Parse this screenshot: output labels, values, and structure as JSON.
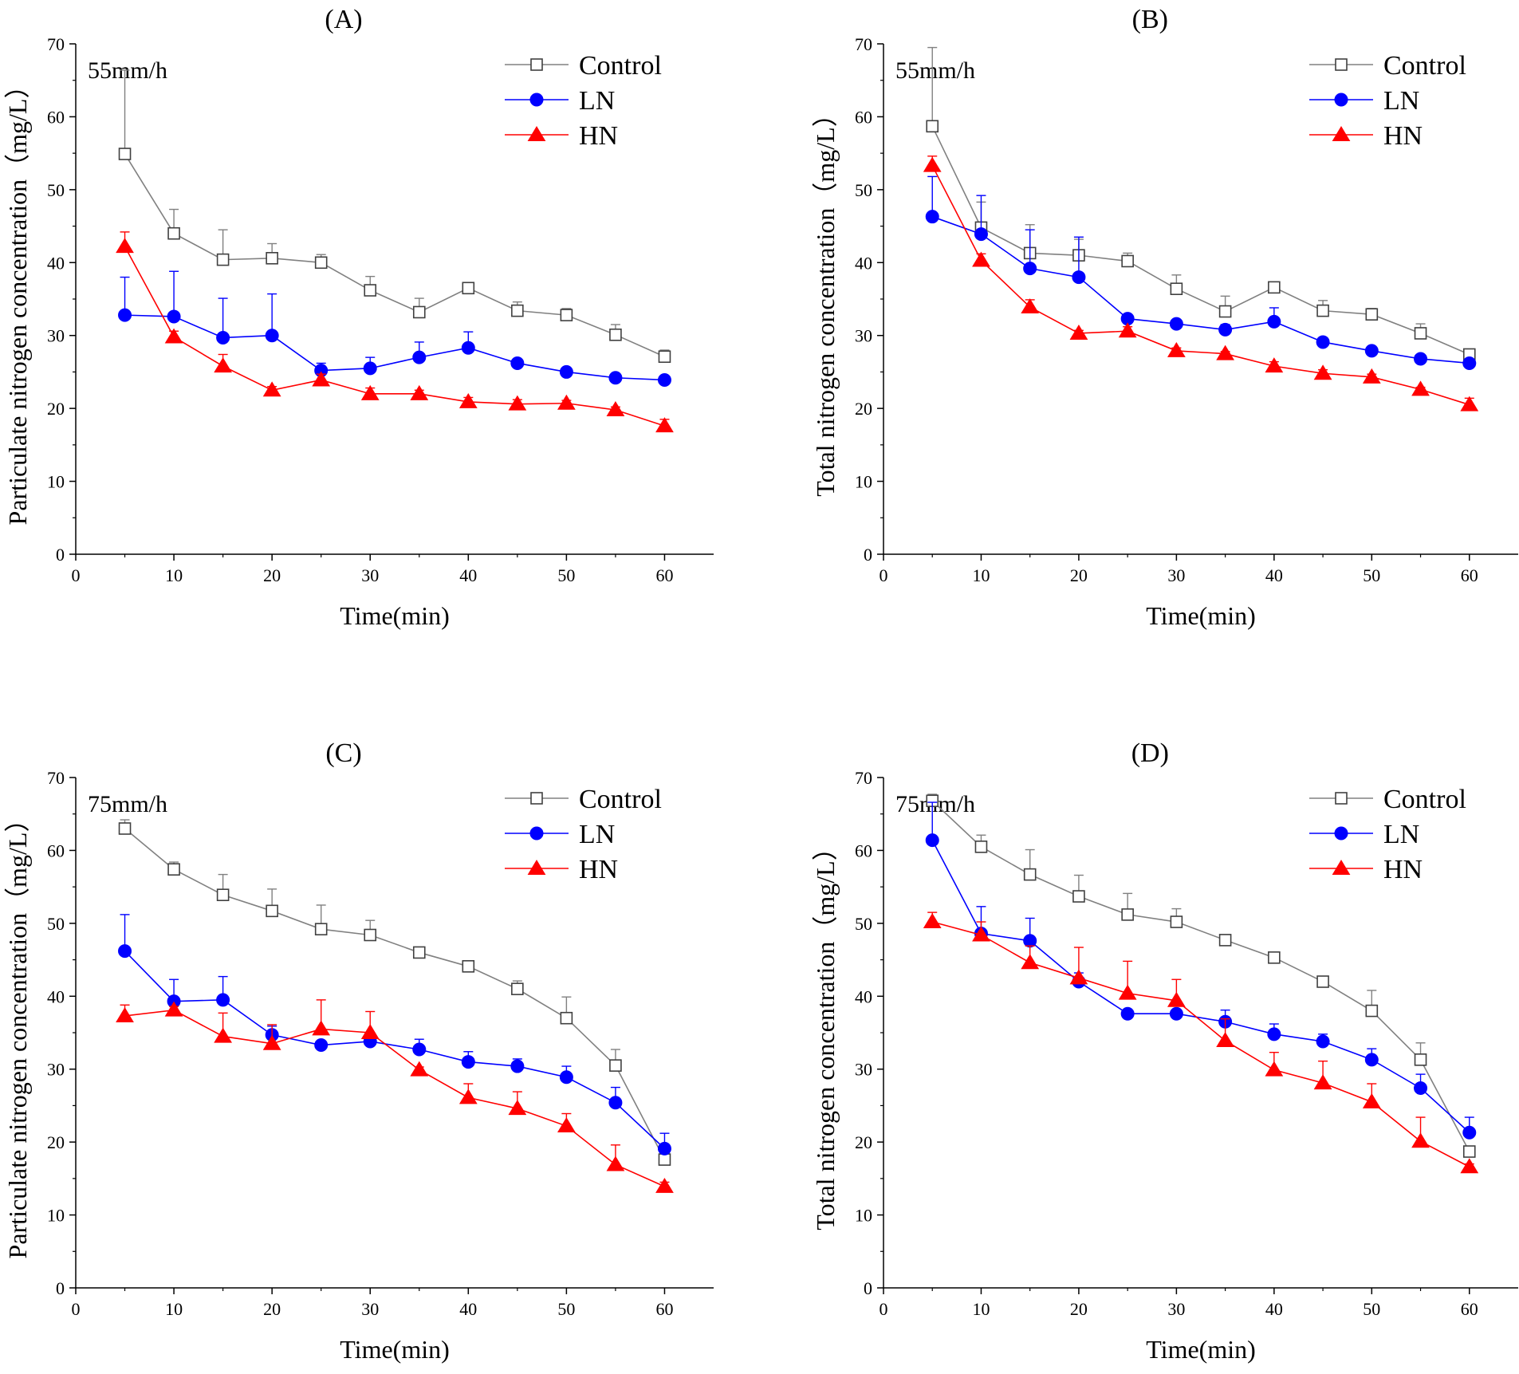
{
  "figure": {
    "series_names": [
      "Control",
      "LN",
      "HN"
    ],
    "series_colors": {
      "Control": "#808080",
      "LN": "#0000ff",
      "HN": "#ff0000"
    },
    "marker_shapes": {
      "Control": "open-square",
      "LN": "filled-circle",
      "HN": "filled-triangle"
    }
  },
  "chart_data": [
    {
      "id": "A",
      "type": "line",
      "title": "(A)",
      "annotation": "55mm/h",
      "xlabel": "Time(min)",
      "ylabel": "Particulate nitrogen concentration（mg/L）",
      "xlim": [
        0,
        65
      ],
      "ylim": [
        0,
        70
      ],
      "xticks": [
        0,
        10,
        20,
        30,
        40,
        50,
        60
      ],
      "yticks": [
        0,
        10,
        20,
        30,
        40,
        50,
        60,
        70
      ],
      "x": [
        5,
        10,
        15,
        20,
        25,
        30,
        35,
        40,
        45,
        50,
        55,
        60
      ],
      "legend_position": "top-right",
      "series": [
        {
          "name": "Control",
          "values": [
            54.9,
            44.0,
            40.4,
            40.6,
            40.0,
            36.2,
            33.2,
            36.5,
            33.4,
            32.8,
            30.1,
            27.1
          ],
          "errors": [
            11.5,
            3.3,
            4.1,
            2.0,
            1.1,
            1.9,
            1.9,
            0.4,
            1.2,
            0.9,
            1.4,
            0.9
          ]
        },
        {
          "name": "LN",
          "values": [
            32.8,
            32.6,
            29.7,
            30.0,
            25.2,
            25.5,
            27.0,
            28.3,
            26.2,
            25.0,
            24.2,
            23.9
          ],
          "errors": [
            5.2,
            6.2,
            5.4,
            5.7,
            1.0,
            1.5,
            2.1,
            2.2,
            0.4,
            0.3,
            0.3,
            0.3
          ]
        },
        {
          "name": "HN",
          "values": [
            42.2,
            29.8,
            25.8,
            22.5,
            23.9,
            22.0,
            22.0,
            20.9,
            20.6,
            20.7,
            19.8,
            17.6
          ],
          "errors": [
            2.0,
            0.8,
            1.6,
            0.5,
            0.8,
            0.8,
            0.5,
            0.6,
            0.6,
            0.4,
            0.4,
            0.9
          ]
        }
      ]
    },
    {
      "id": "B",
      "type": "line",
      "title": "(B)",
      "annotation": "55mm/h",
      "xlabel": "Time(min)",
      "ylabel": "Total nitrogen concentration（mg/L）",
      "xlim": [
        0,
        65
      ],
      "ylim": [
        0,
        70
      ],
      "xticks": [
        0,
        10,
        20,
        30,
        40,
        50,
        60
      ],
      "yticks": [
        0,
        10,
        20,
        30,
        40,
        50,
        60,
        70
      ],
      "x": [
        5,
        10,
        15,
        20,
        25,
        30,
        35,
        40,
        45,
        50,
        55,
        60
      ],
      "legend_position": "top-right",
      "series": [
        {
          "name": "Control",
          "values": [
            58.7,
            44.8,
            41.3,
            41.0,
            40.2,
            36.4,
            33.3,
            36.6,
            33.4,
            32.9,
            30.3,
            27.4
          ],
          "errors": [
            10.8,
            3.5,
            3.9,
            2.2,
            1.1,
            1.9,
            2.1,
            0.5,
            1.4,
            0.8,
            1.3,
            0.7
          ]
        },
        {
          "name": "LN",
          "values": [
            46.3,
            43.9,
            39.2,
            38.0,
            32.3,
            31.6,
            30.8,
            31.9,
            29.1,
            27.9,
            26.8,
            26.2
          ],
          "errors": [
            5.5,
            5.3,
            5.3,
            5.5,
            0.4,
            0.3,
            0.7,
            1.9,
            0.3,
            0.3,
            0.3,
            0.3
          ]
        },
        {
          "name": "HN",
          "values": [
            53.3,
            40.3,
            33.9,
            30.3,
            30.6,
            27.9,
            27.5,
            25.8,
            24.8,
            24.3,
            22.6,
            20.5
          ],
          "errors": [
            1.3,
            0.9,
            1.0,
            0.4,
            0.6,
            0.4,
            0.3,
            0.6,
            0.5,
            0.4,
            0.3,
            0.9
          ]
        }
      ]
    },
    {
      "id": "C",
      "type": "line",
      "title": "(C)",
      "annotation": "75mm/h",
      "xlabel": "Time(min)",
      "ylabel": "Particulate nitrogen concentration（mg/L）",
      "xlim": [
        0,
        65
      ],
      "ylim": [
        0,
        70
      ],
      "xticks": [
        0,
        10,
        20,
        30,
        40,
        50,
        60
      ],
      "yticks": [
        0,
        10,
        20,
        30,
        40,
        50,
        60,
        70
      ],
      "x": [
        5,
        10,
        15,
        20,
        25,
        30,
        35,
        40,
        45,
        50,
        55,
        60
      ],
      "legend_position": "top-right",
      "series": [
        {
          "name": "Control",
          "values": [
            63.0,
            57.4,
            53.9,
            51.7,
            49.2,
            48.4,
            46.0,
            44.1,
            41.0,
            37.0,
            30.5,
            17.6
          ],
          "errors": [
            1.2,
            1.0,
            2.8,
            3.0,
            3.3,
            2.0,
            0.6,
            0.4,
            1.1,
            2.9,
            2.2,
            0.4
          ]
        },
        {
          "name": "LN",
          "values": [
            46.2,
            39.3,
            39.5,
            34.7,
            33.3,
            33.8,
            32.7,
            31.0,
            30.4,
            28.9,
            25.4,
            19.1
          ],
          "errors": [
            5.0,
            3.0,
            3.2,
            1.2,
            0.3,
            0.3,
            1.4,
            1.4,
            1.0,
            1.5,
            2.1,
            2.1
          ]
        },
        {
          "name": "HN",
          "values": [
            37.3,
            38.1,
            34.5,
            33.5,
            35.5,
            35.0,
            29.9,
            26.1,
            24.6,
            22.2,
            16.9,
            13.9
          ],
          "errors": [
            1.5,
            0.5,
            3.2,
            2.6,
            4.0,
            2.9,
            0.4,
            1.9,
            2.3,
            1.7,
            2.7,
            0.6
          ]
        }
      ]
    },
    {
      "id": "D",
      "type": "line",
      "title": "(D)",
      "annotation": "75mm/h",
      "xlabel": "Time(min)",
      "ylabel": "Total nitrogen concentration（mg/L）",
      "xlim": [
        0,
        65
      ],
      "ylim": [
        0,
        70
      ],
      "xticks": [
        0,
        10,
        20,
        30,
        40,
        50,
        60
      ],
      "yticks": [
        0,
        10,
        20,
        30,
        40,
        50,
        60,
        70
      ],
      "x": [
        5,
        10,
        15,
        20,
        25,
        30,
        35,
        40,
        45,
        50,
        55,
        60
      ],
      "legend_position": "top-right",
      "series": [
        {
          "name": "Control",
          "values": [
            66.8,
            60.5,
            56.7,
            53.7,
            51.2,
            50.2,
            47.7,
            45.3,
            42.0,
            38.0,
            31.3,
            18.7
          ],
          "errors": [
            0.9,
            1.6,
            3.4,
            2.9,
            2.9,
            1.8,
            0.6,
            0.4,
            0.3,
            2.8,
            2.3,
            0.3
          ]
        },
        {
          "name": "LN",
          "values": [
            61.4,
            48.6,
            47.6,
            42.0,
            37.6,
            37.6,
            36.5,
            34.8,
            33.8,
            31.3,
            27.4,
            21.3
          ],
          "errors": [
            5.2,
            3.7,
            3.1,
            1.2,
            0.3,
            0.3,
            1.6,
            1.4,
            1.0,
            1.5,
            1.9,
            2.1
          ]
        },
        {
          "name": "HN",
          "values": [
            50.2,
            48.4,
            44.6,
            42.5,
            40.4,
            39.4,
            33.9,
            29.9,
            28.1,
            25.5,
            20.1,
            16.6
          ],
          "errors": [
            1.3,
            1.8,
            2.3,
            4.2,
            4.4,
            2.9,
            3.0,
            2.4,
            3.0,
            2.5,
            3.3,
            0.4
          ]
        }
      ]
    }
  ]
}
